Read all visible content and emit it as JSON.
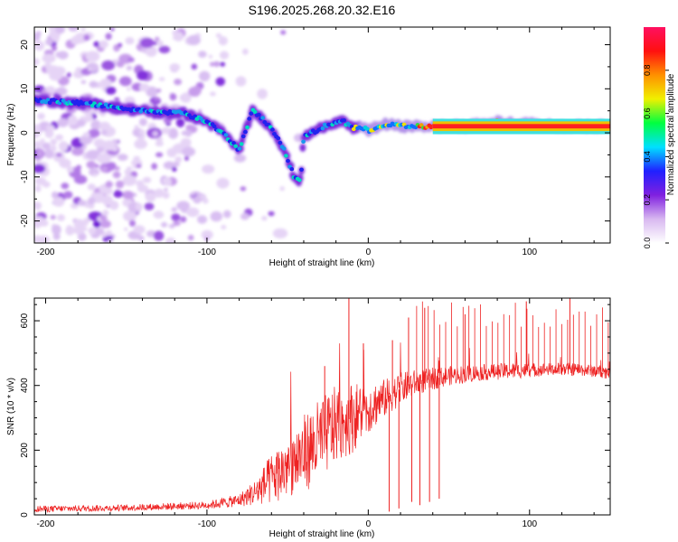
{
  "chart_data": [
    {
      "type": "heatmap",
      "title": "S196.2025.268.20.32.E16",
      "xlabel": "Height of straight line (km)",
      "ylabel": "Frequency (Hz)",
      "xlim": [
        -207,
        150
      ],
      "ylim": [
        -25,
        24
      ],
      "xticks": [
        -200,
        -100,
        0,
        100
      ],
      "yticks": [
        -20,
        -10,
        0,
        10,
        20
      ],
      "colorbar": {
        "label": "Normalized spectral amplitude",
        "range": [
          0,
          1
        ],
        "ticks": [
          "0.0",
          "0.2",
          "0.4",
          "0.6",
          "0.8"
        ],
        "colors": [
          "#ffffff",
          "#d8b8f0",
          "#8020e0",
          "#2020ff",
          "#00e0ff",
          "#00ff40",
          "#f0f000",
          "#ff9000",
          "#ff1010",
          "#ff1060"
        ]
      },
      "ridge": {
        "x": [
          -207,
          -190,
          -170,
          -150,
          -130,
          -115,
          -100,
          -90,
          -80,
          -72,
          -65,
          -58,
          -52,
          -46,
          -42,
          -40,
          -35,
          -25,
          -15,
          -10,
          -5,
          0,
          10,
          20,
          40,
          60,
          80,
          100,
          120,
          150
        ],
        "freq": [
          7.5,
          7,
          6.5,
          5.5,
          4.5,
          4.5,
          2.5,
          0,
          -4,
          5,
          3,
          0,
          -4,
          -10,
          -11,
          -1,
          0,
          2,
          2.5,
          1,
          1.5,
          0.5,
          2,
          1.5,
          1.5,
          1.5,
          2.5,
          2,
          1.5,
          1.5
        ]
      }
    },
    {
      "type": "line",
      "xlabel": "Height of straight line (km)",
      "ylabel": "SNR (10 * v/v)",
      "xlim": [
        -207,
        150
      ],
      "ylim": [
        0,
        670
      ],
      "xticks": [
        -200,
        -100,
        0,
        100
      ],
      "yticks": [
        0,
        200,
        400,
        600
      ],
      "color": "#ee2222",
      "envelope": {
        "x": [
          -207,
          -150,
          -100,
          -80,
          -70,
          -60,
          -50,
          -40,
          -30,
          -20,
          -10,
          0,
          10,
          20,
          30,
          50,
          70,
          90,
          110,
          130,
          150
        ],
        "mean": [
          18,
          22,
          30,
          45,
          70,
          110,
          150,
          190,
          230,
          280,
          300,
          330,
          360,
          390,
          410,
          430,
          440,
          445,
          450,
          450,
          440
        ],
        "spread": [
          10,
          10,
          12,
          20,
          40,
          80,
          100,
          120,
          130,
          120,
          110,
          80,
          60,
          50,
          40,
          30,
          25,
          25,
          20,
          20,
          20
        ]
      },
      "spikes": [
        {
          "x": -12,
          "y": 670
        },
        {
          "x": -27,
          "y": 460
        },
        {
          "x": -3,
          "y": 530
        },
        {
          "x": 15,
          "y": 540
        },
        {
          "x": 25,
          "y": 610
        },
        {
          "x": 35,
          "y": 640
        },
        {
          "x": 60,
          "y": 620
        },
        {
          "x": 98,
          "y": 660
        },
        {
          "x": 125,
          "y": 670
        }
      ],
      "dips": [
        {
          "x": 13,
          "y": 10
        },
        {
          "x": 19,
          "y": 20
        },
        {
          "x": 27,
          "y": 40
        },
        {
          "x": 32,
          "y": 30
        },
        {
          "x": 38,
          "y": 40
        },
        {
          "x": 44,
          "y": 50
        }
      ]
    }
  ]
}
